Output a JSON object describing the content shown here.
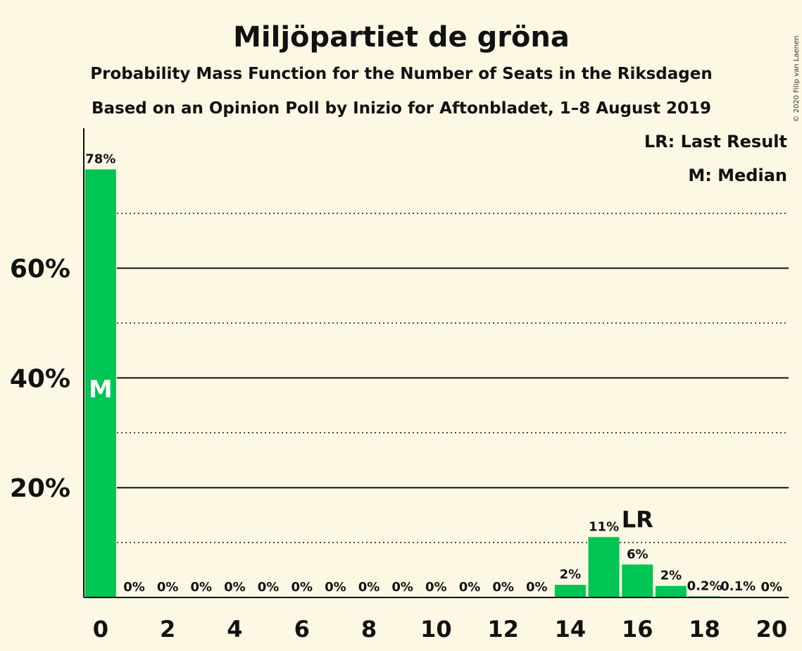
{
  "header": {
    "title": "Miljöpartiet de gröna",
    "subtitle1": "Probability Mass Function for the Number of Seats in the Riksdagen",
    "subtitle2": "Based on an Opinion Poll by Inizio for Aftonbladet, 1–8 August 2019",
    "copyright": "© 2020 Filip van Laenen"
  },
  "legend": {
    "lr": "LR: Last Result",
    "median": "M: Median"
  },
  "colors": {
    "bar": "#00c454",
    "background": "#fdf8e4",
    "text": "#111111"
  },
  "chart_data": {
    "type": "bar",
    "x": [
      0,
      1,
      2,
      3,
      4,
      5,
      6,
      7,
      8,
      9,
      10,
      11,
      12,
      13,
      14,
      15,
      16,
      17,
      18,
      19,
      20
    ],
    "values": [
      78,
      0,
      0,
      0,
      0,
      0,
      0,
      0,
      0,
      0,
      0,
      0,
      0,
      0,
      2.3,
      11,
      6,
      2.1,
      0.2,
      0.1,
      0
    ],
    "labels": [
      "78%",
      "0%",
      "0%",
      "0%",
      "0%",
      "0%",
      "0%",
      "0%",
      "0%",
      "0%",
      "0%",
      "0%",
      "0%",
      "0%",
      "2%",
      "11%",
      "6%",
      "2%",
      "0.2%",
      "0.1%",
      "0%"
    ],
    "xticks": [
      0,
      2,
      4,
      6,
      8,
      10,
      12,
      14,
      16,
      18,
      20
    ],
    "yticks": [
      20,
      40,
      60
    ],
    "ytick_labels": [
      "20%",
      "40%",
      "60%"
    ],
    "minor_gridlines": [
      10,
      30,
      50,
      70
    ],
    "ylim": [
      0,
      85
    ],
    "median_seat": 0,
    "median_marker": "M",
    "last_result_seat": 16,
    "last_result_marker": "LR",
    "legend_position": "top-right"
  }
}
